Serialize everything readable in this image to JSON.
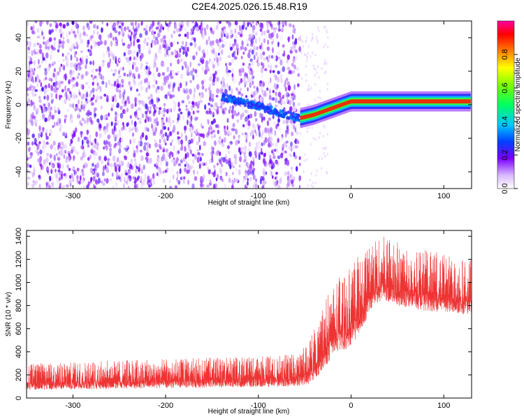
{
  "title": "C2E4.2025.026.15.48.R19",
  "chart_data": [
    {
      "type": "heatmap",
      "name": "spectrogram",
      "xlabel": "Height of straight line (km)",
      "ylabel": "Frequency (Hz)",
      "xlim": [
        -350,
        130
      ],
      "ylim": [
        -50,
        50
      ],
      "xticks": [
        -300,
        -200,
        -100,
        0,
        100
      ],
      "yticks": [
        -40,
        -20,
        0,
        20,
        40
      ],
      "grid": false,
      "colorbar": {
        "label": "Normalized spectral amplitude",
        "range": [
          0.0,
          1.0
        ],
        "ticks": [
          0.0,
          0.2,
          0.4,
          0.6,
          0.8
        ]
      },
      "regions": [
        {
          "x_range": [
            -350,
            -55
          ],
          "description_level": 0.15
        },
        {
          "x_range": [
            -55,
            130
          ],
          "freq_center": 0,
          "peak_level": 0.9
        }
      ]
    },
    {
      "type": "line",
      "name": "snr",
      "xlabel": "Height of straight line (km)",
      "ylabel": "SNR (10 * v/v)",
      "xlim": [
        -350,
        130
      ],
      "ylim": [
        0,
        1450
      ],
      "xticks": [
        -300,
        -200,
        -100,
        0,
        100
      ],
      "yticks": [
        0,
        200,
        400,
        600,
        800,
        1000,
        1200,
        1400
      ],
      "color": "#ee3333",
      "grid": false,
      "envelope": {
        "x": [
          -350,
          -300,
          -250,
          -200,
          -150,
          -100,
          -60,
          -45,
          -35,
          -25,
          -15,
          -5,
          5,
          15,
          25,
          35,
          50,
          75,
          100,
          130
        ],
        "low": [
          70,
          75,
          80,
          85,
          90,
          95,
          100,
          120,
          200,
          300,
          400,
          420,
          500,
          650,
          800,
          850,
          800,
          760,
          740,
          720
        ],
        "high": [
          300,
          310,
          330,
          340,
          350,
          360,
          380,
          500,
          700,
          900,
          1050,
          1100,
          1200,
          1300,
          1380,
          1400,
          1350,
          1300,
          1250,
          1200
        ]
      }
    }
  ]
}
